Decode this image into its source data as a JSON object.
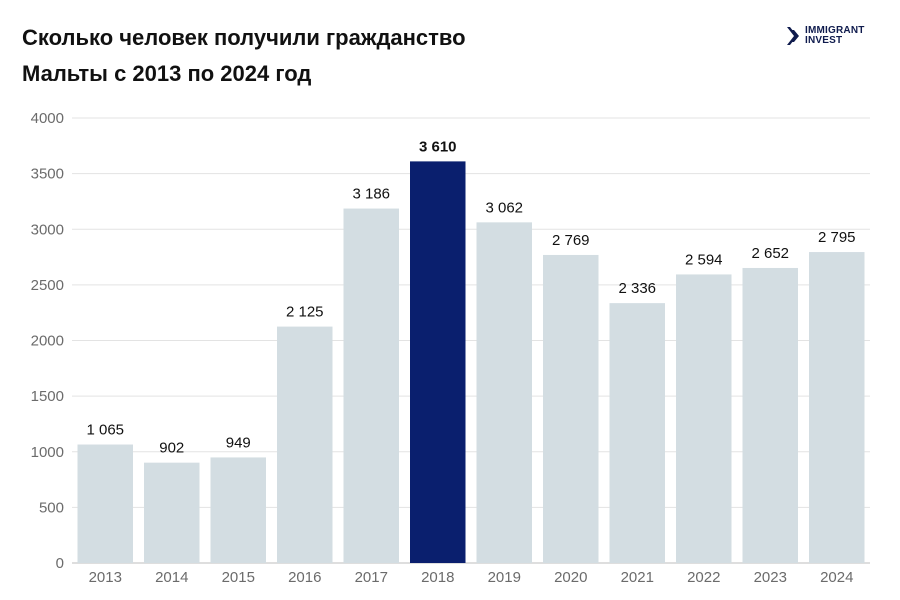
{
  "header": {
    "title_line1": "Сколько человек получили гражданство",
    "title_line2": "Мальты с 2013 по 2024 год"
  },
  "logo": {
    "line1": "IMMIGRANT",
    "line2": "INVEST",
    "icon": "chevron-logo-icon",
    "color": "#0f1b4d"
  },
  "chart_data": {
    "type": "bar",
    "categories": [
      "2013",
      "2014",
      "2015",
      "2016",
      "2017",
      "2018",
      "2019",
      "2020",
      "2021",
      "2022",
      "2023",
      "2024"
    ],
    "values": [
      1065,
      902,
      949,
      2125,
      3186,
      3610,
      3062,
      2769,
      2336,
      2594,
      2652,
      2795
    ],
    "value_labels": [
      "1 065",
      "902",
      "949",
      "2 125",
      "3 186",
      "3 610",
      "3 062",
      "2 769",
      "2 336",
      "2 594",
      "2 652",
      "2 795"
    ],
    "ylim": [
      0,
      4000
    ],
    "yticks": [
      "0",
      "500",
      "1000",
      "1500",
      "2000",
      "2500",
      "3000",
      "3500",
      "4000"
    ],
    "highlight_category": "2018",
    "colors": {
      "bar": "#d3dde2",
      "highlight": "#0a1f6e",
      "grid": "#e3e3e3"
    },
    "grid": true
  }
}
